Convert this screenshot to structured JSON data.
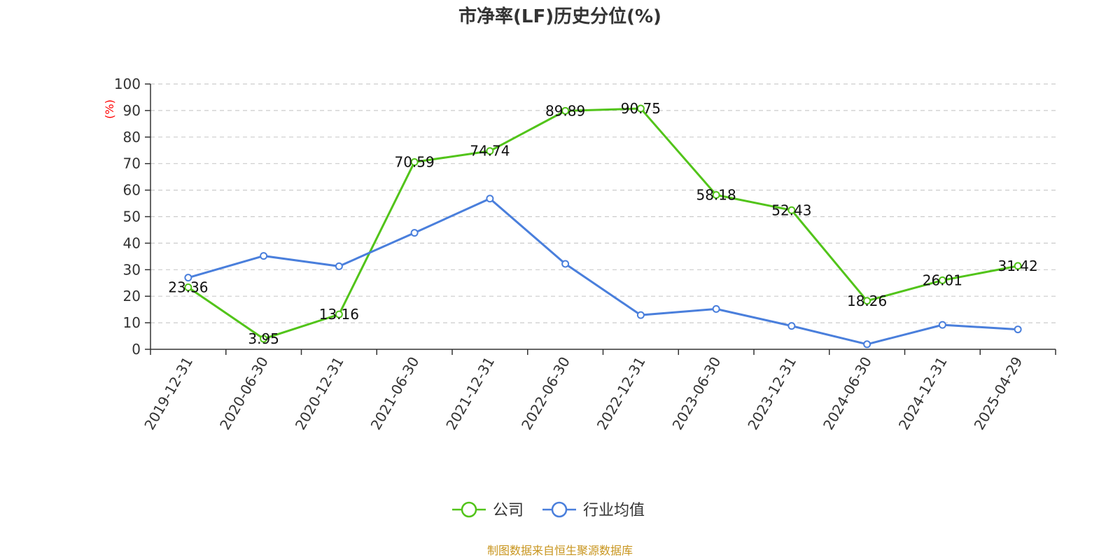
{
  "chart_data": {
    "type": "line",
    "title": "市净率(LF)历史分位(%)",
    "ylabel": "(%)",
    "xlabel": "",
    "ylim": [
      0,
      100
    ],
    "yticks": [
      0,
      10,
      20,
      30,
      40,
      50,
      60,
      70,
      80,
      90,
      100
    ],
    "grid": true,
    "legend_position": "bottom-center",
    "categories": [
      "2019-12-31",
      "2020-06-30",
      "2020-12-31",
      "2021-06-30",
      "2021-12-31",
      "2022-06-30",
      "2022-12-31",
      "2023-06-30",
      "2023-12-31",
      "2024-06-30",
      "2024-12-31",
      "2025-04-29"
    ],
    "series": [
      {
        "name": "公司",
        "color": "#52c41a",
        "values": [
          23.36,
          3.95,
          13.16,
          70.59,
          74.74,
          89.89,
          90.75,
          58.18,
          52.43,
          18.26,
          26.01,
          31.42
        ],
        "labels": [
          "23.36",
          "3.95",
          "13.16",
          "70.59",
          "74.74",
          "89.89",
          "90.75",
          "58.18",
          "52.43",
          "18.26",
          "26.01",
          "31.42"
        ]
      },
      {
        "name": "行业均值",
        "color": "#4a7fdc",
        "values": [
          27.0,
          35.2,
          31.3,
          43.9,
          56.8,
          32.2,
          12.9,
          15.2,
          8.8,
          1.9,
          9.2,
          7.5
        ]
      }
    ]
  },
  "colors": {
    "unit_label": "#ff0000",
    "source": "#c8951e",
    "axis": "#333333",
    "grid": "#cccccc"
  },
  "footer": {
    "source": "制图数据来自恒生聚源数据库"
  }
}
